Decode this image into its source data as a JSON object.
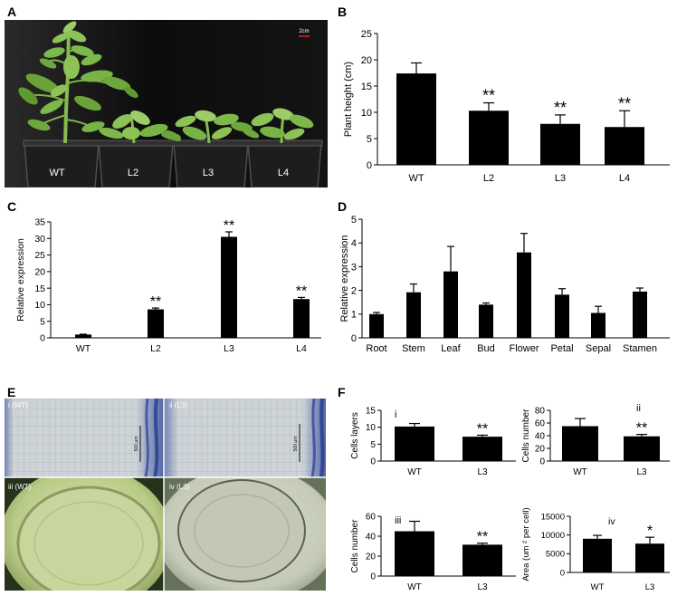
{
  "figure": {
    "panel_labels": {
      "a": "A",
      "e": "E"
    },
    "photo_a": {
      "scale_bar": "2cm",
      "plant_labels": [
        "WT",
        "L2",
        "L3",
        "L4"
      ]
    },
    "photo_e": {
      "image_labels": [
        "i (WT)",
        "ii (L3)",
        "iii (WT)",
        "iv (L3)"
      ],
      "scale_bar": "500 μm"
    }
  },
  "colors": {
    "bars": "#000000",
    "axes": "#000000",
    "scale_bar_a": "#d7261e"
  },
  "chart_data": [
    {
      "panel": "B",
      "type": "bar",
      "categories": [
        "WT",
        "L2",
        "L3",
        "L4"
      ],
      "values": [
        17.4,
        10.3,
        7.8,
        7.2
      ],
      "errors": [
        2.0,
        1.5,
        1.7,
        3.1
      ],
      "significance": [
        "",
        "**",
        "**",
        "**"
      ],
      "xlabel": "",
      "ylabel": "Plant height (cm)",
      "ylim": [
        0,
        25
      ],
      "yticks": [
        0,
        5,
        10,
        15,
        20,
        25
      ],
      "grid": false
    },
    {
      "panel": "C",
      "type": "bar",
      "categories": [
        "WT",
        "L2",
        "L3",
        "L4"
      ],
      "values": [
        1.0,
        8.6,
        30.5,
        11.7
      ],
      "errors": [
        0.1,
        0.4,
        1.5,
        0.5
      ],
      "significance": [
        "",
        "**",
        "**",
        "**"
      ],
      "xlabel": "",
      "ylabel": "Relative expression",
      "ylim": [
        0,
        35
      ],
      "yticks": [
        0,
        5,
        10,
        15,
        20,
        25,
        30,
        35
      ],
      "grid": false
    },
    {
      "panel": "D",
      "type": "bar",
      "categories": [
        "Root",
        "Stem",
        "Leaf",
        "Bud",
        "Flower",
        "Petal",
        "Sepal",
        "Stamen"
      ],
      "values": [
        1.0,
        1.92,
        2.8,
        1.4,
        3.6,
        1.82,
        1.05,
        1.95
      ],
      "errors": [
        0.07,
        0.35,
        1.05,
        0.07,
        0.8,
        0.25,
        0.28,
        0.15
      ],
      "significance": [
        "",
        "",
        "",
        "",
        "",
        "",
        "",
        ""
      ],
      "xlabel": "",
      "ylabel": "Relative expression",
      "ylim": [
        0,
        5
      ],
      "yticks": [
        0,
        1,
        2,
        3,
        4,
        5
      ],
      "grid": false
    },
    {
      "panel": "F",
      "subpanel": "i",
      "type": "bar",
      "categories": [
        "WT",
        "L3"
      ],
      "values": [
        10.2,
        7.2
      ],
      "errors": [
        0.9,
        0.45
      ],
      "significance": [
        "",
        "**"
      ],
      "xlabel": "",
      "ylabel": "Cells layers",
      "ylim": [
        0,
        15
      ],
      "yticks": [
        0,
        5,
        10,
        15
      ],
      "grid": false
    },
    {
      "panel": "F",
      "subpanel": "ii",
      "type": "bar",
      "categories": [
        "WT",
        "L3"
      ],
      "values": [
        55,
        39
      ],
      "errors": [
        12,
        3
      ],
      "significance": [
        "",
        "**"
      ],
      "xlabel": "",
      "ylabel": "Cells number",
      "ylim": [
        0,
        80
      ],
      "yticks": [
        0,
        20,
        40,
        60,
        80
      ],
      "grid": false
    },
    {
      "panel": "F",
      "subpanel": "iii",
      "type": "bar",
      "categories": [
        "WT",
        "L3"
      ],
      "values": [
        45,
        31.5
      ],
      "errors": [
        10,
        1.5
      ],
      "significance": [
        "",
        "**"
      ],
      "xlabel": "",
      "ylabel": "Cells number",
      "ylim": [
        0,
        60
      ],
      "yticks": [
        0,
        20,
        40,
        60
      ],
      "grid": false
    },
    {
      "panel": "F",
      "subpanel": "iv",
      "type": "bar",
      "categories": [
        "WT",
        "L3"
      ],
      "values": [
        9000,
        7700
      ],
      "errors": [
        900,
        1700
      ],
      "significance": [
        "",
        "*"
      ],
      "xlabel": "",
      "ylabel": "Area (um ² per cell)",
      "ylim": [
        0,
        15000
      ],
      "yticks": [
        0,
        5000,
        10000,
        15000
      ],
      "grid": false
    }
  ]
}
